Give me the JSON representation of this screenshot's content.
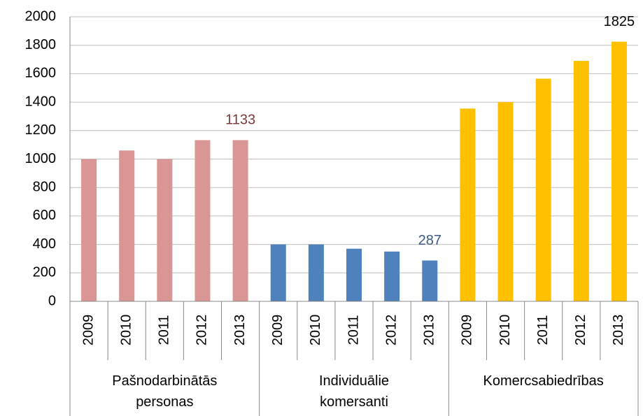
{
  "chart_data": {
    "type": "bar",
    "ylim": [
      0,
      2000
    ],
    "yticks": [
      0,
      200,
      400,
      600,
      800,
      1000,
      1200,
      1400,
      1600,
      1800,
      2000
    ],
    "grid": true,
    "groups": [
      {
        "name": "Pašnodarbinātās personas",
        "color": "#d99694",
        "label_color": "#7b3b3a",
        "categories": [
          "2009",
          "2010",
          "2011",
          "2012",
          "2013"
        ],
        "values": [
          1000,
          1060,
          1000,
          1133,
          1133
        ],
        "value_labels": [
          null,
          null,
          null,
          null,
          "1133"
        ]
      },
      {
        "name": "Individuālie komersanti",
        "color": "#4f81bd",
        "label_color": "#3b5a86",
        "categories": [
          "2009",
          "2010",
          "2011",
          "2012",
          "2013"
        ],
        "values": [
          400,
          400,
          370,
          350,
          287
        ],
        "value_labels": [
          null,
          null,
          null,
          null,
          "287"
        ]
      },
      {
        "name": "Komercsabiedrības",
        "color": "#ffc000",
        "label_color": "#000000",
        "categories": [
          "2009",
          "2010",
          "2011",
          "2012",
          "2013"
        ],
        "values": [
          1355,
          1400,
          1565,
          1690,
          1825
        ],
        "value_labels": [
          null,
          null,
          null,
          null,
          "1825"
        ]
      }
    ]
  }
}
